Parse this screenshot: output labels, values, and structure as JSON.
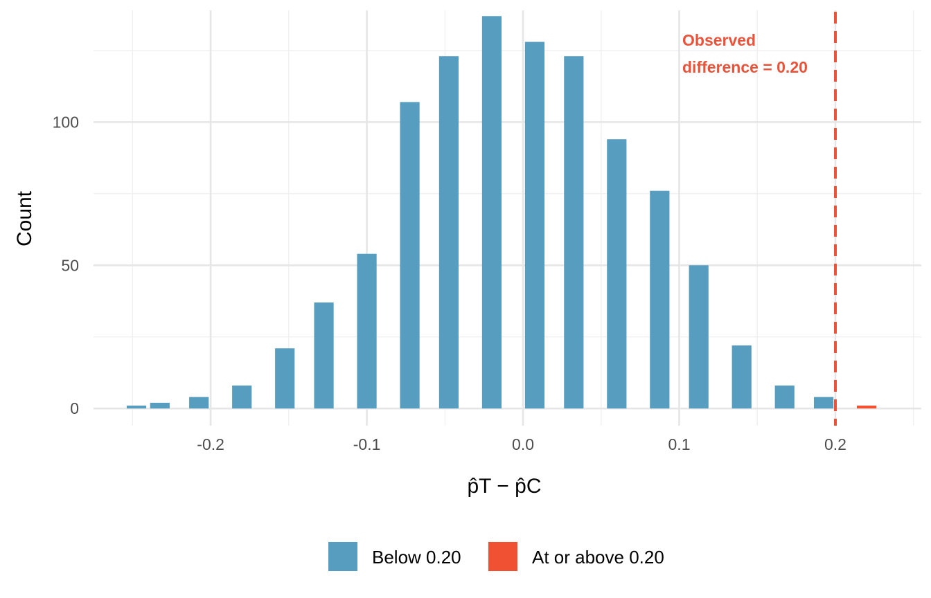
{
  "chart_data": {
    "type": "bar",
    "title": "",
    "xlabel": "p̂T − p̂C",
    "ylabel": "Count",
    "xlim": [
      -0.275,
      0.255
    ],
    "ylim": [
      -6,
      139
    ],
    "x_ticks": [
      -0.2,
      -0.1,
      0.0,
      0.1,
      0.2
    ],
    "x_tick_labels": [
      "-0.2",
      "-0.1",
      "0.0",
      "0.1",
      "0.2"
    ],
    "y_ticks": [
      0,
      50,
      100
    ],
    "y_tick_labels": [
      "0",
      "50",
      "100"
    ],
    "grid": true,
    "bar_width": 0.0125,
    "threshold": 0.2,
    "series": [
      {
        "name": "Below 0.20",
        "color": "#569dbf",
        "x": [
          -0.2475,
          -0.2325,
          -0.2075,
          -0.18,
          -0.1525,
          -0.1275,
          -0.1,
          -0.0725,
          -0.0475,
          -0.02,
          0.0075,
          0.0325,
          0.06,
          0.0875,
          0.1125,
          0.14,
          0.1675,
          0.1925
        ],
        "values": [
          1,
          2,
          4,
          8,
          21,
          37,
          54,
          107,
          123,
          137,
          128,
          123,
          94,
          76,
          50,
          22,
          8,
          4
        ]
      },
      {
        "name": "At or above 0.20",
        "color": "#f15133",
        "x": [
          0.22
        ],
        "values": [
          1
        ]
      }
    ],
    "reference_line": {
      "x": 0.2,
      "color": "#e8533a",
      "style": "dashed"
    },
    "annotation": {
      "lines": [
        "Observed",
        "difference = 0.20"
      ],
      "color": "#e8533a"
    },
    "legend": {
      "position": "bottom",
      "items": [
        "Below 0.20",
        "At or above 0.20"
      ]
    }
  }
}
